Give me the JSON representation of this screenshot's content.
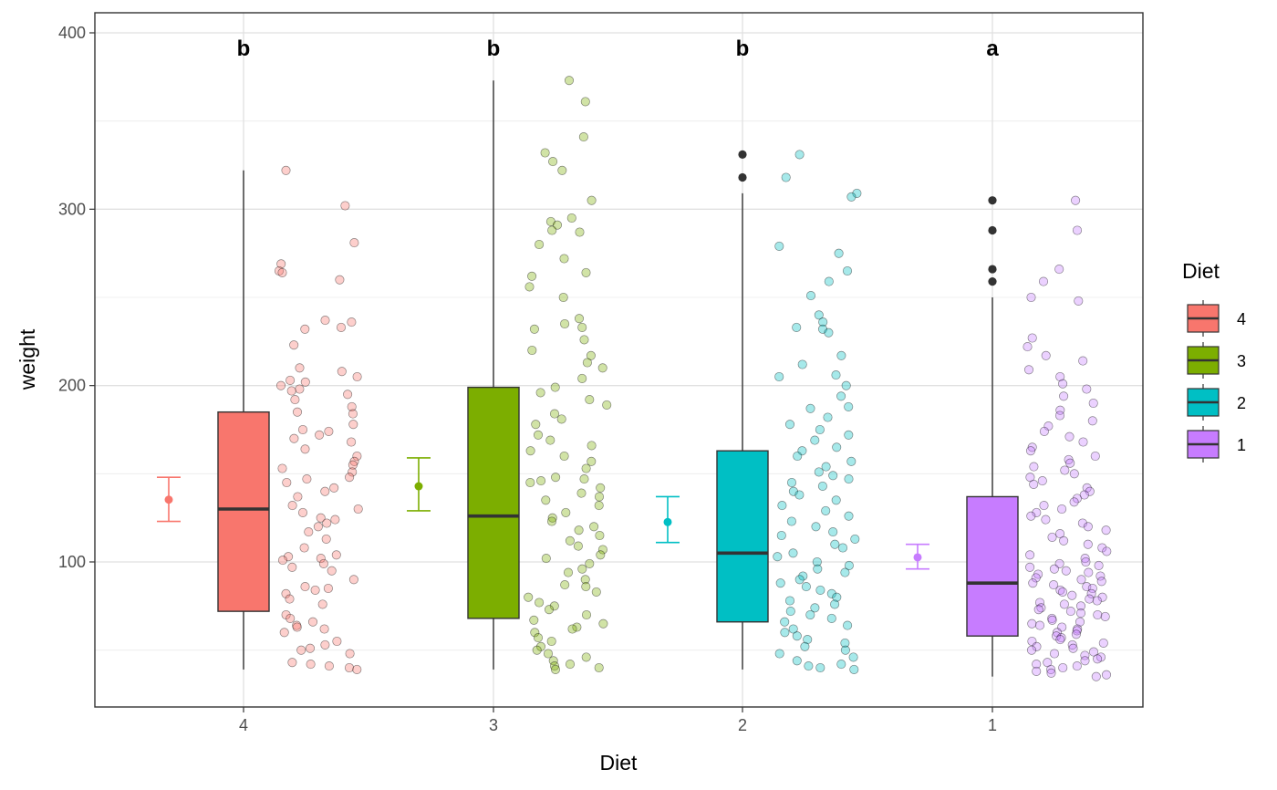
{
  "chart_data": {
    "type": "box",
    "xlabel": "Diet",
    "ylabel": "weight",
    "categories": [
      "4",
      "3",
      "2",
      "1"
    ],
    "ylim": [
      20,
      410
    ],
    "yticks": [
      100,
      200,
      300,
      400
    ],
    "grid": true,
    "legend": {
      "title": "Diet",
      "placement": "right",
      "items": [
        {
          "label": "4",
          "color": "#F8766D"
        },
        {
          "label": "3",
          "color": "#7CAE00"
        },
        {
          "label": "2",
          "color": "#00BFC4"
        },
        {
          "label": "1",
          "color": "#C77CFF"
        }
      ]
    },
    "groups": [
      {
        "name": "4",
        "color": "#F8766D",
        "letter": "b",
        "box": {
          "whisker_low": 39,
          "q1": 72,
          "median": 130,
          "q3": 185,
          "whisker_high": 322
        },
        "outliers": [],
        "mean": 135.3,
        "ci": [
          123,
          148
        ],
        "points": [
          322,
          302,
          281,
          269,
          265,
          264,
          260,
          237,
          236,
          233,
          232,
          223,
          210,
          208,
          205,
          203,
          202,
          200,
          198,
          197,
          195,
          192,
          188,
          185,
          184,
          178,
          175,
          174,
          172,
          170,
          168,
          164,
          160,
          157,
          155,
          153,
          151,
          148,
          147,
          145,
          142,
          140,
          137,
          132,
          130,
          128,
          125,
          124,
          122,
          120,
          117,
          113,
          108,
          104,
          103,
          102,
          101,
          99,
          97,
          95,
          90,
          86,
          85,
          84,
          82,
          79,
          76,
          70,
          68,
          66,
          64,
          63,
          62,
          60,
          55,
          53,
          51,
          50,
          48,
          43,
          42,
          41,
          40,
          39
        ]
      },
      {
        "name": "3",
        "color": "#7CAE00",
        "letter": "b",
        "box": {
          "whisker_low": 39,
          "q1": 68,
          "median": 126,
          "q3": 199,
          "whisker_high": 373
        },
        "outliers": [],
        "mean": 142.9,
        "ci": [
          129,
          159
        ],
        "points": [
          373,
          361,
          341,
          332,
          327,
          322,
          305,
          295,
          293,
          291,
          288,
          287,
          280,
          272,
          264,
          262,
          256,
          250,
          238,
          235,
          233,
          232,
          226,
          220,
          217,
          213,
          210,
          204,
          199,
          196,
          192,
          189,
          184,
          181,
          178,
          172,
          169,
          166,
          163,
          160,
          157,
          153,
          148,
          147,
          146,
          145,
          142,
          139,
          137,
          135,
          132,
          128,
          125,
          123,
          120,
          118,
          115,
          112,
          109,
          107,
          104,
          102,
          99,
          96,
          94,
          90,
          87,
          86,
          83,
          80,
          77,
          75,
          73,
          70,
          67,
          65,
          63,
          62,
          60,
          57,
          55,
          52,
          50,
          48,
          46,
          44,
          42,
          41,
          40,
          39
        ]
      },
      {
        "name": "2",
        "color": "#00BFC4",
        "letter": "b",
        "box": {
          "whisker_low": 39,
          "q1": 66,
          "median": 105,
          "q3": 163,
          "whisker_high": 309
        },
        "outliers": [
          318,
          331
        ],
        "mean": 122.6,
        "ci": [
          111,
          137
        ],
        "points": [
          331,
          318,
          309,
          307,
          279,
          275,
          265,
          259,
          251,
          240,
          236,
          233,
          232,
          230,
          217,
          212,
          206,
          205,
          200,
          194,
          188,
          187,
          182,
          178,
          175,
          172,
          169,
          165,
          163,
          160,
          157,
          154,
          151,
          149,
          147,
          145,
          143,
          140,
          138,
          135,
          132,
          129,
          126,
          123,
          120,
          117,
          115,
          113,
          110,
          108,
          105,
          103,
          100,
          98,
          96,
          94,
          92,
          90,
          88,
          86,
          84,
          82,
          80,
          78,
          76,
          74,
          72,
          70,
          68,
          66,
          64,
          62,
          60,
          58,
          56,
          54,
          52,
          50,
          48,
          46,
          44,
          42,
          41,
          40,
          39
        ]
      },
      {
        "name": "1",
        "color": "#C77CFF",
        "letter": "a",
        "box": {
          "whisker_low": 35,
          "q1": 58,
          "median": 88,
          "q3": 137,
          "whisker_high": 250
        },
        "outliers": [
          259,
          266,
          288,
          305
        ],
        "mean": 102.6,
        "ci": [
          96,
          110
        ],
        "points": [
          305,
          288,
          266,
          259,
          250,
          248,
          227,
          222,
          217,
          214,
          209,
          205,
          201,
          198,
          194,
          190,
          186,
          183,
          180,
          177,
          174,
          171,
          168,
          165,
          163,
          160,
          158,
          156,
          154,
          152,
          150,
          148,
          146,
          144,
          142,
          140,
          138,
          136,
          134,
          132,
          130,
          128,
          126,
          124,
          122,
          120,
          118,
          116,
          114,
          112,
          110,
          108,
          106,
          104,
          102,
          100,
          99,
          98,
          97,
          96,
          95,
          94,
          93,
          92,
          91,
          90,
          89,
          88,
          87,
          86,
          85,
          84,
          83,
          82,
          81,
          80,
          79,
          78,
          77,
          76,
          75,
          74,
          73,
          72,
          71,
          70,
          69,
          68,
          67,
          66,
          65,
          64,
          63,
          62,
          61,
          60,
          59,
          58,
          57,
          56,
          55,
          54,
          53,
          52,
          51,
          50,
          49,
          48,
          47,
          46,
          45,
          44,
          43,
          42,
          41,
          40,
          39,
          38,
          37,
          36,
          35
        ]
      }
    ]
  }
}
